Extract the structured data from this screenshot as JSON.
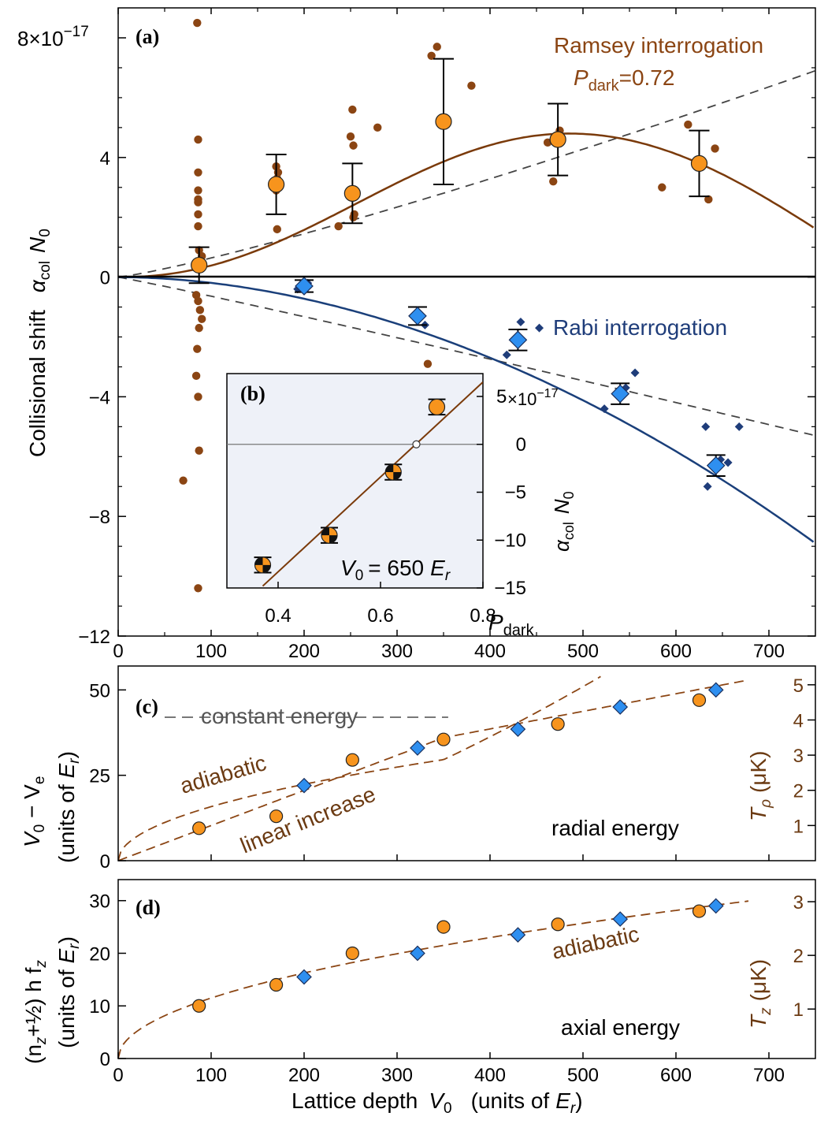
{
  "figure": {
    "x_axis_label": "Lattice depth",
    "x_axis_symbol": "V",
    "x_axis_sub": "0",
    "x_axis_units": "(units of",
    "x_axis_er": "E",
    "x_axis_er_sub": "r",
    "x_axis_close": ")"
  },
  "chart_data": [
    {
      "panel": "a",
      "type": "scatter",
      "label": "(a)",
      "xlim": [
        0,
        750
      ],
      "ylim": [
        -12,
        8
      ],
      "ylabel_main": "Collisional shift",
      "ylabel_alpha": "α",
      "ylabel_alpha_sub": "col",
      "ylabel_n": "N",
      "ylabel_n_sub": "0",
      "y_exponent": "8×10",
      "y_exponent_power": "−17",
      "x_ticks": [
        "0",
        "100",
        "200",
        "300",
        "400",
        "500",
        "600",
        "700"
      ],
      "y_ticks": [
        "−12",
        "−8",
        "−4",
        "0",
        "4"
      ],
      "ramsey_label": "Ramsey interrogation",
      "pdark_p": "P",
      "pdark_sub": "dark",
      "pdark_value": "=0.72",
      "rabi_label": "Rabi interrogation",
      "colors": {
        "ramsey": "#f7941d",
        "ramsey_dark": "#8b4513",
        "rabi": "#2e8ff0",
        "rabi_dark": "#1f3d7a",
        "ramsey_fit": "#7a3a0a",
        "rabi_fit": "#1a3f7a"
      },
      "ramsey_raw": [
        [
          85,
          8.5
        ],
        [
          86,
          4.6
        ],
        [
          86,
          3.5
        ],
        [
          86,
          2.9
        ],
        [
          86,
          2.6
        ],
        [
          86,
          2.5
        ],
        [
          86,
          2.1
        ],
        [
          86,
          1.7
        ],
        [
          87,
          0.9
        ],
        [
          88,
          0.5
        ],
        [
          90,
          0.7
        ],
        [
          85,
          0.3
        ],
        [
          84,
          -0.6
        ],
        [
          86,
          -0.8
        ],
        [
          88,
          -1.1
        ],
        [
          90,
          -1.4
        ],
        [
          87,
          -1.7
        ],
        [
          85,
          -2.4
        ],
        [
          84,
          -3.3
        ],
        [
          86,
          -4.0
        ],
        [
          87,
          -5.8
        ],
        [
          70,
          -6.8
        ],
        [
          86,
          -10.4
        ],
        [
          170,
          3.7
        ],
        [
          172,
          3.5
        ],
        [
          171,
          3.3
        ],
        [
          173,
          3.1
        ],
        [
          170,
          2.9
        ],
        [
          171,
          1.6
        ],
        [
          252,
          5.6
        ],
        [
          250,
          4.7
        ],
        [
          253,
          4.4
        ],
        [
          254,
          2.1
        ],
        [
          253,
          2.0
        ],
        [
          237,
          1.7
        ],
        [
          279,
          5.0
        ],
        [
          337,
          7.4
        ],
        [
          343,
          7.7
        ],
        [
          380,
          6.4
        ],
        [
          333,
          -2.9
        ],
        [
          462,
          4.5
        ],
        [
          475,
          4.9
        ],
        [
          470,
          4.5
        ],
        [
          468,
          3.2
        ],
        [
          585,
          3.0
        ],
        [
          613,
          5.1
        ],
        [
          635,
          2.6
        ],
        [
          642,
          4.3
        ]
      ],
      "ramsey_mean": [
        {
          "x": 87,
          "y": 0.4,
          "err": 0.6
        },
        {
          "x": 170,
          "y": 3.1,
          "err": 1.0
        },
        {
          "x": 252,
          "y": 2.8,
          "err": 1.0
        },
        {
          "x": 350,
          "y": 5.2,
          "err": 2.1
        },
        {
          "x": 473,
          "y": 4.6,
          "err": 1.2
        },
        {
          "x": 625,
          "y": 3.8,
          "err": 1.1
        }
      ],
      "rabi_raw": [
        [
          204,
          -0.2
        ],
        [
          193,
          -0.4
        ],
        [
          330,
          -1.6
        ],
        [
          418,
          -2.6
        ],
        [
          433,
          -1.5
        ],
        [
          453,
          -1.7
        ],
        [
          523,
          -4.4
        ],
        [
          546,
          -3.7
        ],
        [
          556,
          -3.2
        ],
        [
          632,
          -5.0
        ],
        [
          634,
          -7.0
        ],
        [
          648,
          -6.1
        ],
        [
          656,
          -6.2
        ],
        [
          668,
          -5.0
        ]
      ],
      "rabi_mean": [
        {
          "x": 200,
          "y": -0.3,
          "err": 0.2
        },
        {
          "x": 322,
          "y": -1.3,
          "err": 0.3
        },
        {
          "x": 430,
          "y": -2.1,
          "err": 0.35
        },
        {
          "x": 540,
          "y": -3.9,
          "err": 0.35
        },
        {
          "x": 643,
          "y": -6.3,
          "err": 0.35
        }
      ],
      "ramsey_fit_peak": {
        "x": 485,
        "y": 4.8
      },
      "rabi_fit_end": {
        "x": 750,
        "y": -8.9
      },
      "dashed_upper_end": {
        "x": 750,
        "y": 6.9
      },
      "dashed_lower_end": {
        "x": 750,
        "y": -5.3
      }
    },
    {
      "panel": "b",
      "type": "scatter",
      "label": "(b)",
      "xlim": [
        0.3,
        0.8
      ],
      "ylim": [
        -15,
        7
      ],
      "x_ticks": [
        "0.4",
        "0.6",
        "0.8"
      ],
      "y_ticks": [
        "−15",
        "−10",
        "−5",
        "0",
        "5"
      ],
      "y_exponent": "×10",
      "y_exponent_power": "−17",
      "xlabel_p": "P",
      "xlabel_sub": "dark",
      "ylabel_alpha": "α",
      "ylabel_alpha_sub": "col",
      "ylabel_n": "N",
      "ylabel_n_sub": "0",
      "annotation_v": "V",
      "annotation_v_sub": "0",
      "annotation_value": "= 650",
      "annotation_e": "E",
      "annotation_e_sub": "r",
      "points": [
        {
          "x": 0.37,
          "y": -12.6,
          "err": 0.8
        },
        {
          "x": 0.5,
          "y": -9.5,
          "err": 0.8
        },
        {
          "x": 0.625,
          "y": -2.9,
          "err": 0.8
        },
        {
          "x": 0.71,
          "y": 3.9,
          "err": 0.8
        }
      ],
      "zero_crossing": {
        "x": 0.67,
        "y": 0
      },
      "fit_line": [
        [
          0.37,
          -14.8
        ],
        [
          0.8,
          6.5
        ]
      ]
    },
    {
      "panel": "c",
      "type": "scatter",
      "label": "(c)",
      "xlim": [
        0,
        750
      ],
      "ylim": [
        0,
        57
      ],
      "y_ticks": [
        "0",
        "25",
        "50"
      ],
      "right_ticks": [
        "1",
        "2",
        "3",
        "4",
        "5"
      ],
      "ylabel_line1_a": "V",
      "ylabel_line1_a_sub": "0",
      "ylabel_line1_b": " − V",
      "ylabel_line1_b_sub": "e",
      "ylabel_line2": "(units of",
      "ylabel_line2_e": "E",
      "ylabel_line2_e_sub": "r",
      "ylabel_line2_close": ")",
      "right_label_t": "T",
      "right_label_sub": "ρ",
      "right_label_units": "(μK)",
      "constant_energy_label": "constant energy",
      "adiabatic_label": "adiabatic",
      "linear_label": "linear increase",
      "panel_title": "radial energy",
      "constant_energy_level": 42,
      "ramsey_points": [
        [
          87,
          9.5
        ],
        [
          170,
          13
        ],
        [
          252,
          29.5
        ],
        [
          350,
          35.5
        ],
        [
          473,
          40
        ],
        [
          625,
          47
        ]
      ],
      "rabi_points": [
        [
          200,
          22
        ],
        [
          322,
          33
        ],
        [
          430,
          38.5
        ],
        [
          540,
          45
        ],
        [
          643,
          50
        ]
      ]
    },
    {
      "panel": "d",
      "type": "scatter",
      "label": "(d)",
      "xlim": [
        0,
        750
      ],
      "ylim": [
        0,
        34
      ],
      "y_ticks": [
        "0",
        "10",
        "20",
        "30"
      ],
      "right_ticks": [
        "1",
        "2",
        "3"
      ],
      "ylabel_line1": "(n",
      "ylabel_line1_sub": "z",
      "ylabel_line1_rest": "+½) h f",
      "ylabel_line1_sub2": "z",
      "ylabel_line2": "(units of",
      "ylabel_line2_e": "E",
      "ylabel_line2_e_sub": "r",
      "ylabel_line2_close": ")",
      "right_label_t": "T",
      "right_label_sub": "z",
      "right_label_units": "(μK)",
      "adiabatic_label": "adiabatic",
      "panel_title": "axial energy",
      "x_ticks": [
        "0",
        "100",
        "200",
        "300",
        "400",
        "500",
        "600",
        "700"
      ],
      "ramsey_points": [
        [
          87,
          10
        ],
        [
          170,
          14
        ],
        [
          252,
          20
        ],
        [
          350,
          25
        ],
        [
          473,
          25.5
        ],
        [
          625,
          28
        ]
      ],
      "rabi_points": [
        [
          200,
          15.5
        ],
        [
          322,
          20
        ],
        [
          430,
          23.5
        ],
        [
          540,
          26.5
        ],
        [
          643,
          29
        ]
      ]
    }
  ]
}
